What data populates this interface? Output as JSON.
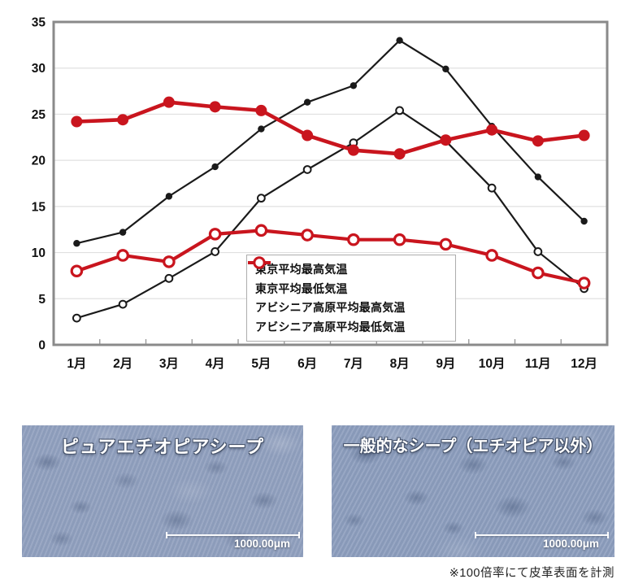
{
  "chart_data": {
    "type": "line",
    "title": "",
    "xlabel": "",
    "ylabel": "",
    "categories": [
      "1月",
      "2月",
      "3月",
      "4月",
      "5月",
      "6月",
      "7月",
      "8月",
      "9月",
      "10月",
      "11月",
      "12月"
    ],
    "series": [
      {
        "name": "東京平均最高気温",
        "color": "#1a1a1a",
        "marker": "filled",
        "line_width": 2.2,
        "marker_radius": 4.2,
        "values": [
          11.0,
          12.2,
          16.1,
          19.3,
          23.4,
          26.3,
          28.1,
          33.0,
          29.9,
          23.7,
          18.2,
          13.4
        ]
      },
      {
        "name": "東京平均最低気温",
        "color": "#1a1a1a",
        "marker": "open",
        "line_width": 2.2,
        "marker_radius": 4.4,
        "values": [
          2.9,
          4.4,
          7.2,
          10.1,
          15.9,
          19.0,
          21.9,
          25.4,
          22.1,
          17.0,
          10.1,
          6.1
        ]
      },
      {
        "name": "アビシニア高原平均最高気温",
        "color": "#c9151e",
        "marker": "filled",
        "line_width": 4.6,
        "marker_radius": 7.0,
        "values": [
          24.2,
          24.4,
          26.3,
          25.8,
          25.4,
          22.7,
          21.1,
          20.7,
          22.2,
          23.3,
          22.1,
          22.7
        ]
      },
      {
        "name": "アビシニア高原平均最低気温",
        "color": "#c9151e",
        "marker": "open",
        "line_width": 4.2,
        "marker_radius": 6.2,
        "values": [
          8.0,
          9.7,
          9.0,
          12.0,
          12.4,
          11.9,
          11.4,
          11.4,
          10.9,
          9.7,
          7.8,
          6.7
        ]
      }
    ],
    "ylim": [
      0,
      35
    ],
    "ytick_step": 5,
    "grid": true,
    "legend_position": "inside-bottom-center"
  },
  "photos": {
    "left": {
      "title": "ピュアエチオピアシープ",
      "scale_label": "1000.00μm"
    },
    "right": {
      "title": "一般的なシープ（エチオピア以外）",
      "scale_label": "1000.00μm"
    }
  },
  "footnote": "※100倍率にて皮革表面を計測",
  "colors": {
    "tokyo_series": "#1a1a1a",
    "abyssinia_series": "#c9151e",
    "grid": "#e0e0e0",
    "frame": "#8a8a8a",
    "axis_text": "#111111",
    "photo_base_left": "#93a2c0",
    "photo_base_right": "#8fa0bf"
  }
}
